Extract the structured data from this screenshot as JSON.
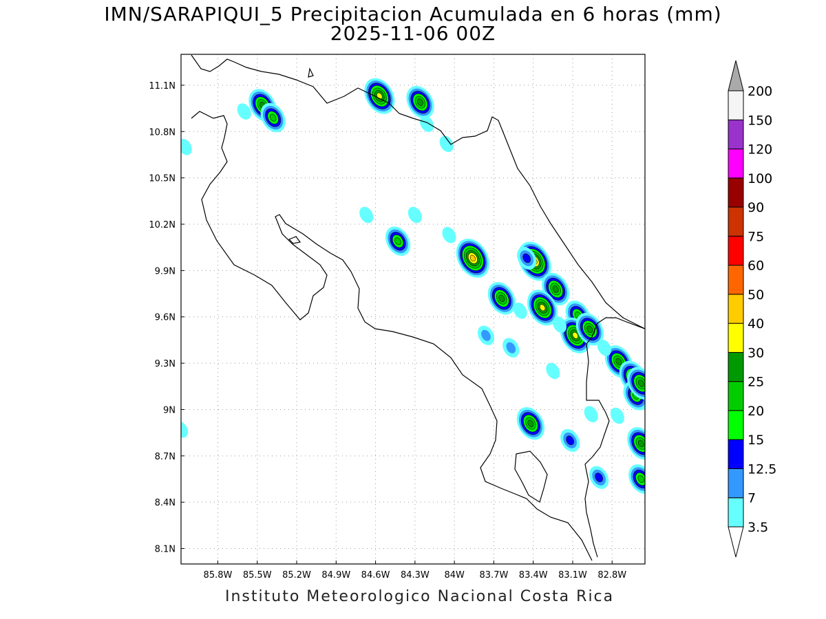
{
  "title": {
    "line1": "IMN/SARAPIQUI_5 Precipitacion Acumulada en 6 horas (mm)",
    "line2": "2025-11-06 00Z"
  },
  "credit": "Instituto Meteorologico Nacional Costa Rica",
  "map": {
    "lon_range": [
      -86.08,
      -82.55
    ],
    "lat_range": [
      8.0,
      11.3
    ],
    "lon_ticks": [
      {
        "value": -85.8,
        "label": "85.8W"
      },
      {
        "value": -85.5,
        "label": "85.5W"
      },
      {
        "value": -85.2,
        "label": "85.2W"
      },
      {
        "value": -84.9,
        "label": "84.9W"
      },
      {
        "value": -84.6,
        "label": "84.6W"
      },
      {
        "value": -84.3,
        "label": "84.3W"
      },
      {
        "value": -84.0,
        "label": "84W"
      },
      {
        "value": -83.7,
        "label": "83.7W"
      },
      {
        "value": -83.4,
        "label": "83.4W"
      },
      {
        "value": -83.1,
        "label": "83.1W"
      },
      {
        "value": -82.8,
        "label": "82.8W"
      }
    ],
    "lat_ticks": [
      {
        "value": 11.1,
        "label": "11.1N"
      },
      {
        "value": 10.8,
        "label": "10.8N"
      },
      {
        "value": 10.5,
        "label": "10.5N"
      },
      {
        "value": 10.2,
        "label": "10.2N"
      },
      {
        "value": 9.9,
        "label": "9.9N"
      },
      {
        "value": 9.6,
        "label": "9.6N"
      },
      {
        "value": 9.3,
        "label": "9.3N"
      },
      {
        "value": 9.0,
        "label": "9N"
      },
      {
        "value": 8.7,
        "label": "8.7N"
      },
      {
        "value": 8.4,
        "label": "8.4N"
      },
      {
        "value": 8.1,
        "label": "8.1N"
      }
    ],
    "grid": "dotted"
  },
  "colorbar": {
    "levels": [
      "3.5",
      "7",
      "12.5",
      "15",
      "20",
      "25",
      "30",
      "40",
      "50",
      "60",
      "75",
      "90",
      "100",
      "120",
      "150",
      "200"
    ],
    "colors": [
      "#66ffff",
      "#3399ff",
      "#0000ff",
      "#00ff00",
      "#00cc00",
      "#009900",
      "#ffff00",
      "#ffcc00",
      "#ff6600",
      "#ff0000",
      "#cc3300",
      "#990000",
      "#ff00ff",
      "#9933cc",
      "#f5f5f5",
      "#aaaaaa"
    ],
    "under_color": "#ffffff",
    "over_color": "#aaaaaa"
  },
  "precip_cells": [
    {
      "lon": -85.46,
      "lat": 10.97,
      "value": 25
    },
    {
      "lon": -85.38,
      "lat": 10.89,
      "value": 20
    },
    {
      "lon": -84.57,
      "lat": 11.03,
      "value": 30
    },
    {
      "lon": -84.26,
      "lat": 10.99,
      "value": 25
    },
    {
      "lon": -84.43,
      "lat": 10.09,
      "value": 20
    },
    {
      "lon": -83.86,
      "lat": 9.98,
      "value": 40
    },
    {
      "lon": -83.39,
      "lat": 9.96,
      "value": 40
    },
    {
      "lon": -83.64,
      "lat": 9.72,
      "value": 25
    },
    {
      "lon": -83.23,
      "lat": 9.78,
      "value": 25
    },
    {
      "lon": -83.33,
      "lat": 9.66,
      "value": 30
    },
    {
      "lon": -83.06,
      "lat": 9.61,
      "value": 20
    },
    {
      "lon": -83.08,
      "lat": 9.48,
      "value": 30
    },
    {
      "lon": -82.97,
      "lat": 9.52,
      "value": 25
    },
    {
      "lon": -82.75,
      "lat": 9.31,
      "value": 25
    },
    {
      "lon": -82.64,
      "lat": 9.21,
      "value": 25
    },
    {
      "lon": -82.62,
      "lat": 9.09,
      "value": 20
    },
    {
      "lon": -83.42,
      "lat": 8.91,
      "value": 25
    },
    {
      "lon": -82.58,
      "lat": 9.17,
      "value": 25
    },
    {
      "lon": -82.58,
      "lat": 8.78,
      "value": 25
    },
    {
      "lon": -82.58,
      "lat": 8.55,
      "value": 20
    },
    {
      "lon": -83.57,
      "lat": 9.4,
      "value": 7
    },
    {
      "lon": -83.76,
      "lat": 9.48,
      "value": 7
    },
    {
      "lon": -83.12,
      "lat": 8.8,
      "value": 12.5
    },
    {
      "lon": -82.9,
      "lat": 8.56,
      "value": 12.5
    },
    {
      "lon": -83.45,
      "lat": 9.98,
      "value": 12.5
    },
    {
      "lon": -85.6,
      "lat": 10.93,
      "value": 3.5
    },
    {
      "lon": -86.05,
      "lat": 10.7,
      "value": 3.5
    },
    {
      "lon": -86.08,
      "lat": 8.87,
      "value": 3.5
    },
    {
      "lon": -84.67,
      "lat": 10.26,
      "value": 3.5
    },
    {
      "lon": -84.3,
      "lat": 10.26,
      "value": 3.5
    },
    {
      "lon": -84.04,
      "lat": 10.13,
      "value": 3.5
    },
    {
      "lon": -84.21,
      "lat": 10.85,
      "value": 3.5
    },
    {
      "lon": -84.06,
      "lat": 10.72,
      "value": 3.5
    },
    {
      "lon": -82.86,
      "lat": 9.4,
      "value": 3.5
    },
    {
      "lon": -82.76,
      "lat": 8.96,
      "value": 3.5
    },
    {
      "lon": -82.96,
      "lat": 8.97,
      "value": 3.5
    },
    {
      "lon": -83.25,
      "lat": 9.25,
      "value": 3.5
    },
    {
      "lon": -83.5,
      "lat": 9.64,
      "value": 3.5
    },
    {
      "lon": -83.2,
      "lat": 9.55,
      "value": 3.5
    }
  ]
}
